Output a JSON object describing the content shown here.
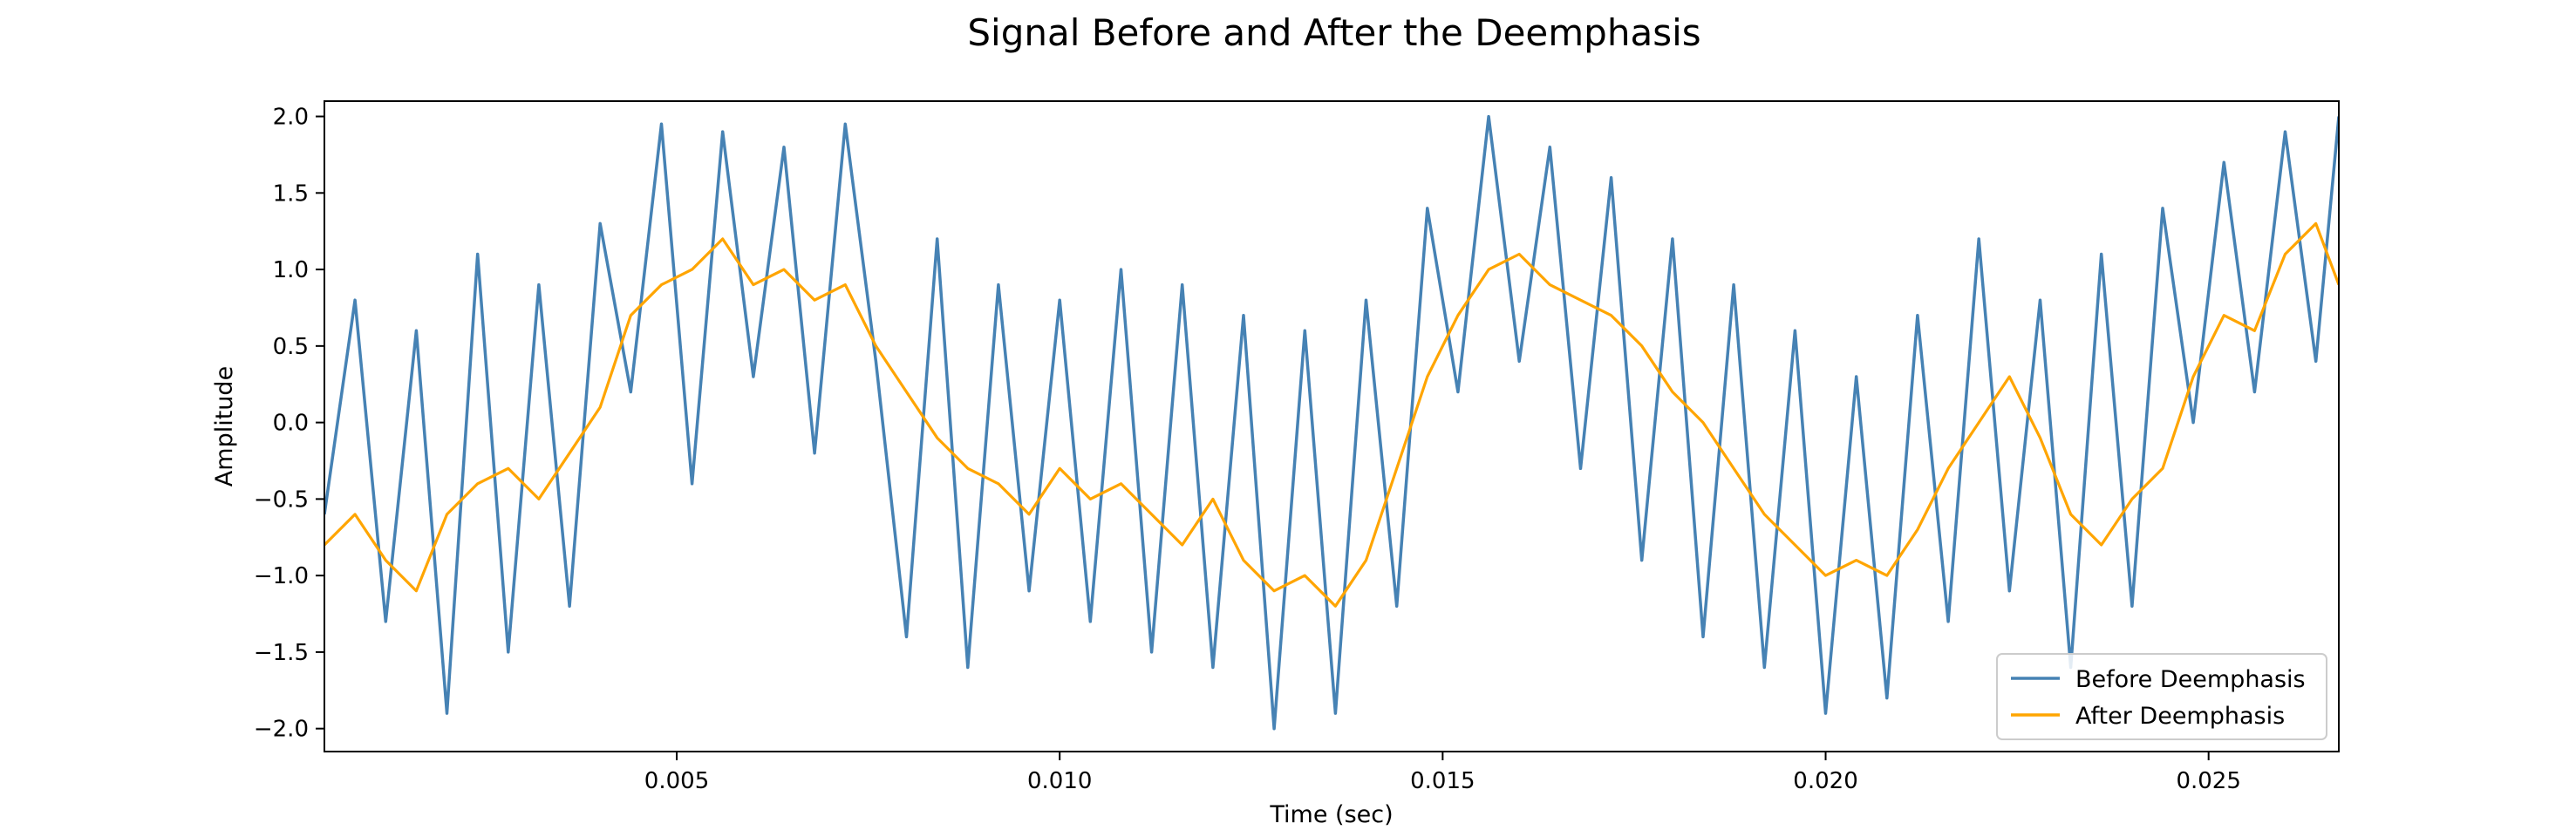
{
  "chart_data": {
    "type": "line",
    "title": "Signal Before and After the Deemphasis",
    "xlabel": "Time (sec)",
    "ylabel": "Amplitude",
    "xlim": [
      0.0004,
      0.0267
    ],
    "ylim": [
      -2.15,
      2.1
    ],
    "xticks": [
      0.005,
      0.01,
      0.015,
      0.02,
      0.025
    ],
    "xtick_labels": [
      "0.005",
      "0.010",
      "0.015",
      "0.020",
      "0.025"
    ],
    "yticks": [
      -2.0,
      -1.5,
      -1.0,
      -0.5,
      0.0,
      0.5,
      1.0,
      1.5,
      2.0
    ],
    "ytick_labels": [
      "−2.0",
      "−1.5",
      "−1.0",
      "−0.5",
      "0.0",
      "0.5",
      "1.0",
      "1.5",
      "2.0"
    ],
    "grid": false,
    "legend_position": "lower-right",
    "series": [
      {
        "name": "Before Deemphasis",
        "color": "#4682b4",
        "x": [
          0.0004,
          0.0008,
          0.0012,
          0.0016,
          0.002,
          0.0024,
          0.0028,
          0.0032,
          0.0036,
          0.004,
          0.0044,
          0.0048,
          0.0052,
          0.0056,
          0.006,
          0.0064,
          0.0068,
          0.0072,
          0.0076,
          0.008,
          0.0084,
          0.0088,
          0.0092,
          0.0096,
          0.01,
          0.0104,
          0.0108,
          0.0112,
          0.0116,
          0.012,
          0.0124,
          0.0128,
          0.0132,
          0.0136,
          0.014,
          0.0144,
          0.0148,
          0.0152,
          0.0156,
          0.016,
          0.0164,
          0.0168,
          0.0172,
          0.0176,
          0.018,
          0.0184,
          0.0188,
          0.0192,
          0.0196,
          0.02,
          0.0204,
          0.0208,
          0.0212,
          0.0216,
          0.022,
          0.0224,
          0.0228,
          0.0232,
          0.0236,
          0.024,
          0.0244,
          0.0248,
          0.0252,
          0.0256,
          0.026,
          0.0264,
          0.0267
        ],
        "y": [
          -0.6,
          0.8,
          -1.3,
          0.6,
          -1.9,
          1.1,
          -1.5,
          0.9,
          -1.2,
          1.3,
          0.2,
          1.95,
          -0.4,
          1.9,
          0.3,
          1.8,
          -0.2,
          1.95,
          0.4,
          -1.4,
          1.2,
          -1.6,
          0.9,
          -1.1,
          0.8,
          -1.3,
          1.0,
          -1.5,
          0.9,
          -1.6,
          0.7,
          -2.0,
          0.6,
          -1.9,
          0.8,
          -1.2,
          1.4,
          0.2,
          2.0,
          0.4,
          1.8,
          -0.3,
          1.6,
          -0.9,
          1.2,
          -1.4,
          0.9,
          -1.6,
          0.6,
          -1.9,
          0.3,
          -1.8,
          0.7,
          -1.3,
          1.2,
          -1.1,
          0.8,
          -1.6,
          1.1,
          -1.2,
          1.4,
          0.0,
          1.7,
          0.2,
          1.9,
          0.4,
          2.0
        ]
      },
      {
        "name": "After Deemphasis",
        "color": "#ffa500",
        "x": [
          0.0004,
          0.0008,
          0.0012,
          0.0016,
          0.002,
          0.0024,
          0.0028,
          0.0032,
          0.0036,
          0.004,
          0.0044,
          0.0048,
          0.0052,
          0.0056,
          0.006,
          0.0064,
          0.0068,
          0.0072,
          0.0076,
          0.008,
          0.0084,
          0.0088,
          0.0092,
          0.0096,
          0.01,
          0.0104,
          0.0108,
          0.0112,
          0.0116,
          0.012,
          0.0124,
          0.0128,
          0.0132,
          0.0136,
          0.014,
          0.0144,
          0.0148,
          0.0152,
          0.0156,
          0.016,
          0.0164,
          0.0168,
          0.0172,
          0.0176,
          0.018,
          0.0184,
          0.0188,
          0.0192,
          0.0196,
          0.02,
          0.0204,
          0.0208,
          0.0212,
          0.0216,
          0.022,
          0.0224,
          0.0228,
          0.0232,
          0.0236,
          0.024,
          0.0244,
          0.0248,
          0.0252,
          0.0256,
          0.026,
          0.0264,
          0.0267
        ],
        "y": [
          -0.8,
          -0.6,
          -0.9,
          -1.1,
          -0.6,
          -0.4,
          -0.3,
          -0.5,
          -0.2,
          0.1,
          0.7,
          0.9,
          1.0,
          1.2,
          0.9,
          1.0,
          0.8,
          0.9,
          0.5,
          0.2,
          -0.1,
          -0.3,
          -0.4,
          -0.6,
          -0.3,
          -0.5,
          -0.4,
          -0.6,
          -0.8,
          -0.5,
          -0.9,
          -1.1,
          -1.0,
          -1.2,
          -0.9,
          -0.3,
          0.3,
          0.7,
          1.0,
          1.1,
          0.9,
          0.8,
          0.7,
          0.5,
          0.2,
          0.0,
          -0.3,
          -0.6,
          -0.8,
          -1.0,
          -0.9,
          -1.0,
          -0.7,
          -0.3,
          0.0,
          0.3,
          -0.1,
          -0.6,
          -0.8,
          -0.5,
          -0.3,
          0.3,
          0.7,
          0.6,
          1.1,
          1.3,
          0.9
        ]
      }
    ]
  }
}
